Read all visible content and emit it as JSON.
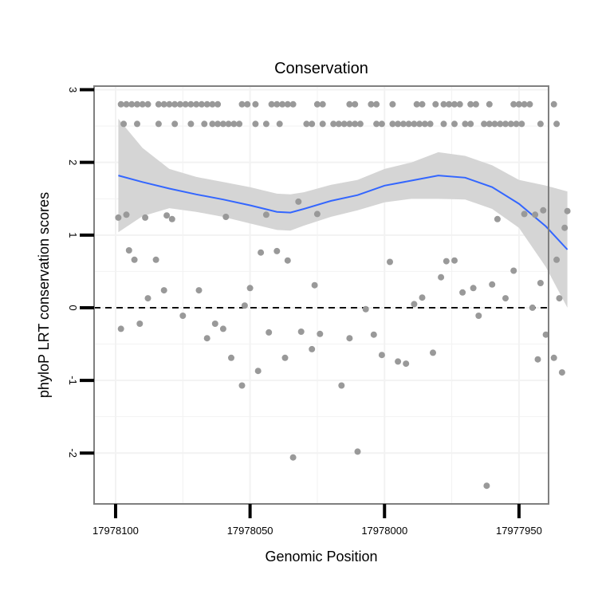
{
  "chart_data": {
    "type": "scatter",
    "title": "Conservation",
    "xlabel": "Genomic Position",
    "ylabel": "phyloP LRT conservation scores",
    "x_reversed": true,
    "xlim": [
      17978108,
      17977939
    ],
    "ylim": [
      -2.7,
      3.05
    ],
    "x_ticks": [
      17978100,
      17978050,
      17978000,
      17977950
    ],
    "x_tick_labels": [
      "17978100",
      "17978050",
      "17978000",
      "17977950"
    ],
    "y_ticks": [
      -2,
      -1,
      0,
      1,
      2,
      3
    ],
    "y_tick_labels": [
      "-2",
      "-1",
      "0",
      "1",
      "2",
      "3"
    ],
    "reference_line": {
      "y": 0,
      "style": "dashed",
      "color": "#000000"
    },
    "grid": true,
    "legend": "none",
    "colors": {
      "points": "#999999",
      "smooth_line": "#3366FF",
      "confidence_band": "#D3D3D3",
      "panel_border": "#7F7F7F",
      "grid": "#F2F2F2"
    },
    "points": [
      {
        "x": 17978099,
        "y": 1.24
      },
      {
        "x": 17978098,
        "y": -0.29
      },
      {
        "x": 17978096,
        "y": 1.28
      },
      {
        "x": 17978095,
        "y": 0.79
      },
      {
        "x": 17978093,
        "y": 0.66
      },
      {
        "x": 17978091,
        "y": -0.22
      },
      {
        "x": 17978089,
        "y": 1.24
      },
      {
        "x": 17978088,
        "y": 0.13
      },
      {
        "x": 17978085,
        "y": 0.66
      },
      {
        "x": 17978082,
        "y": 0.24
      },
      {
        "x": 17978081,
        "y": 1.27
      },
      {
        "x": 17978079,
        "y": 1.22
      },
      {
        "x": 17978075,
        "y": -0.11
      },
      {
        "x": 17978069,
        "y": 0.24
      },
      {
        "x": 17978066,
        "y": -0.42
      },
      {
        "x": 17978063,
        "y": -0.22
      },
      {
        "x": 17978060,
        "y": -0.29
      },
      {
        "x": 17978059,
        "y": 1.25
      },
      {
        "x": 17978057,
        "y": -0.69
      },
      {
        "x": 17978053,
        "y": -1.07
      },
      {
        "x": 17978052,
        "y": 0.03
      },
      {
        "x": 17978050,
        "y": 0.27
      },
      {
        "x": 17978047,
        "y": -0.87
      },
      {
        "x": 17978046,
        "y": 0.76
      },
      {
        "x": 17978044,
        "y": 1.28
      },
      {
        "x": 17978043,
        "y": -0.34
      },
      {
        "x": 17978040,
        "y": 0.78
      },
      {
        "x": 17978037,
        "y": -0.69
      },
      {
        "x": 17978036,
        "y": 0.65
      },
      {
        "x": 17978034,
        "y": -2.06
      },
      {
        "x": 17978032,
        "y": 1.46
      },
      {
        "x": 17978031,
        "y": -0.33
      },
      {
        "x": 17978027,
        "y": -0.57
      },
      {
        "x": 17978026,
        "y": 0.31
      },
      {
        "x": 17978025,
        "y": 1.29
      },
      {
        "x": 17978024,
        "y": -0.36
      },
      {
        "x": 17978016,
        "y": -1.07
      },
      {
        "x": 17978013,
        "y": -0.42
      },
      {
        "x": 17978010,
        "y": -1.98
      },
      {
        "x": 17978007,
        "y": -0.02
      },
      {
        "x": 17978004,
        "y": -0.37
      },
      {
        "x": 17978001,
        "y": -0.65
      },
      {
        "x": 17977998,
        "y": 0.63
      },
      {
        "x": 17977995,
        "y": -0.74
      },
      {
        "x": 17977992,
        "y": -0.77
      },
      {
        "x": 17977989,
        "y": 0.05
      },
      {
        "x": 17977986,
        "y": 0.14
      },
      {
        "x": 17977982,
        "y": -0.62
      },
      {
        "x": 17977979,
        "y": 0.42
      },
      {
        "x": 17977977,
        "y": 0.64
      },
      {
        "x": 17977974,
        "y": 0.65
      },
      {
        "x": 17977971,
        "y": 0.21
      },
      {
        "x": 17977967,
        "y": 0.27
      },
      {
        "x": 17977965,
        "y": -0.11
      },
      {
        "x": 17977962,
        "y": -2.45
      },
      {
        "x": 17977960,
        "y": 0.32
      },
      {
        "x": 17977958,
        "y": 1.22
      },
      {
        "x": 17977955,
        "y": 0.13
      },
      {
        "x": 17977952,
        "y": 0.51
      },
      {
        "x": 17977948,
        "y": 1.29
      },
      {
        "x": 17977945,
        "y": 0.0
      },
      {
        "x": 17977944,
        "y": 1.28
      },
      {
        "x": 17977942,
        "y": 0.34
      },
      {
        "x": 17977943,
        "y": -0.71
      },
      {
        "x": 17977941,
        "y": 1.34
      },
      {
        "x": 17977940,
        "y": -0.37
      },
      {
        "x": 17977937,
        "y": -0.69
      },
      {
        "x": 17977936,
        "y": 0.66
      },
      {
        "x": 17977935,
        "y": 0.13
      },
      {
        "x": 17977934,
        "y": -0.89
      },
      {
        "x": 17977933,
        "y": 1.1
      },
      {
        "x": 17977932,
        "y": 1.33
      },
      {
        "x": 17978098,
        "y": 2.8
      },
      {
        "x": 17978096,
        "y": 2.8
      },
      {
        "x": 17978094,
        "y": 2.8
      },
      {
        "x": 17978092,
        "y": 2.8
      },
      {
        "x": 17978090,
        "y": 2.8
      },
      {
        "x": 17978088,
        "y": 2.8
      },
      {
        "x": 17978084,
        "y": 2.8
      },
      {
        "x": 17978082,
        "y": 2.8
      },
      {
        "x": 17978080,
        "y": 2.8
      },
      {
        "x": 17978078,
        "y": 2.8
      },
      {
        "x": 17978076,
        "y": 2.8
      },
      {
        "x": 17978074,
        "y": 2.8
      },
      {
        "x": 17978072,
        "y": 2.8
      },
      {
        "x": 17978070,
        "y": 2.8
      },
      {
        "x": 17978068,
        "y": 2.8
      },
      {
        "x": 17978066,
        "y": 2.8
      },
      {
        "x": 17978064,
        "y": 2.8
      },
      {
        "x": 17978062,
        "y": 2.8
      },
      {
        "x": 17978053,
        "y": 2.8
      },
      {
        "x": 17978051,
        "y": 2.8
      },
      {
        "x": 17978048,
        "y": 2.8
      },
      {
        "x": 17978042,
        "y": 2.8
      },
      {
        "x": 17978040,
        "y": 2.8
      },
      {
        "x": 17978038,
        "y": 2.8
      },
      {
        "x": 17978036,
        "y": 2.8
      },
      {
        "x": 17978034,
        "y": 2.8
      },
      {
        "x": 17978025,
        "y": 2.8
      },
      {
        "x": 17978023,
        "y": 2.8
      },
      {
        "x": 17978013,
        "y": 2.8
      },
      {
        "x": 17978011,
        "y": 2.8
      },
      {
        "x": 17978005,
        "y": 2.8
      },
      {
        "x": 17978003,
        "y": 2.8
      },
      {
        "x": 17977997,
        "y": 2.8
      },
      {
        "x": 17977988,
        "y": 2.8
      },
      {
        "x": 17977986,
        "y": 2.8
      },
      {
        "x": 17977981,
        "y": 2.8
      },
      {
        "x": 17977978,
        "y": 2.8
      },
      {
        "x": 17977976,
        "y": 2.8
      },
      {
        "x": 17977974,
        "y": 2.8
      },
      {
        "x": 17977972,
        "y": 2.8
      },
      {
        "x": 17977968,
        "y": 2.8
      },
      {
        "x": 17977966,
        "y": 2.8
      },
      {
        "x": 17977961,
        "y": 2.8
      },
      {
        "x": 17977952,
        "y": 2.8
      },
      {
        "x": 17977950,
        "y": 2.8
      },
      {
        "x": 17977948,
        "y": 2.8
      },
      {
        "x": 17977946,
        "y": 2.8
      },
      {
        "x": 17977937,
        "y": 2.8
      },
      {
        "x": 17978097,
        "y": 2.53
      },
      {
        "x": 17978092,
        "y": 2.53
      },
      {
        "x": 17978084,
        "y": 2.53
      },
      {
        "x": 17978078,
        "y": 2.53
      },
      {
        "x": 17978072,
        "y": 2.53
      },
      {
        "x": 17978067,
        "y": 2.53
      },
      {
        "x": 17978064,
        "y": 2.53
      },
      {
        "x": 17978062,
        "y": 2.53
      },
      {
        "x": 17978060,
        "y": 2.53
      },
      {
        "x": 17978058,
        "y": 2.53
      },
      {
        "x": 17978056,
        "y": 2.53
      },
      {
        "x": 17978054,
        "y": 2.53
      },
      {
        "x": 17978048,
        "y": 2.53
      },
      {
        "x": 17978044,
        "y": 2.53
      },
      {
        "x": 17978039,
        "y": 2.53
      },
      {
        "x": 17978029,
        "y": 2.53
      },
      {
        "x": 17978027,
        "y": 2.53
      },
      {
        "x": 17978023,
        "y": 2.53
      },
      {
        "x": 17978019,
        "y": 2.53
      },
      {
        "x": 17978017,
        "y": 2.53
      },
      {
        "x": 17978015,
        "y": 2.53
      },
      {
        "x": 17978013,
        "y": 2.53
      },
      {
        "x": 17978011,
        "y": 2.53
      },
      {
        "x": 17978009,
        "y": 2.53
      },
      {
        "x": 17978003,
        "y": 2.53
      },
      {
        "x": 17978001,
        "y": 2.53
      },
      {
        "x": 17977997,
        "y": 2.53
      },
      {
        "x": 17977995,
        "y": 2.53
      },
      {
        "x": 17977993,
        "y": 2.53
      },
      {
        "x": 17977991,
        "y": 2.53
      },
      {
        "x": 17977989,
        "y": 2.53
      },
      {
        "x": 17977987,
        "y": 2.53
      },
      {
        "x": 17977985,
        "y": 2.53
      },
      {
        "x": 17977983,
        "y": 2.53
      },
      {
        "x": 17977978,
        "y": 2.53
      },
      {
        "x": 17977974,
        "y": 2.53
      },
      {
        "x": 17977970,
        "y": 2.53
      },
      {
        "x": 17977968,
        "y": 2.53
      },
      {
        "x": 17977963,
        "y": 2.53
      },
      {
        "x": 17977961,
        "y": 2.53
      },
      {
        "x": 17977959,
        "y": 2.53
      },
      {
        "x": 17977957,
        "y": 2.53
      },
      {
        "x": 17977955,
        "y": 2.53
      },
      {
        "x": 17977953,
        "y": 2.53
      },
      {
        "x": 17977951,
        "y": 2.53
      },
      {
        "x": 17977949,
        "y": 2.53
      },
      {
        "x": 17977942,
        "y": 2.53
      },
      {
        "x": 17977936,
        "y": 2.53
      }
    ],
    "smooth": {
      "x": [
        17978099,
        17978090,
        17978080,
        17978070,
        17978060,
        17978050,
        17978040,
        17978035,
        17978030,
        17978020,
        17978010,
        17978000,
        17977990,
        17977980,
        17977970,
        17977960,
        17977950,
        17977940,
        17977932
      ],
      "y": [
        1.82,
        1.73,
        1.64,
        1.56,
        1.49,
        1.41,
        1.32,
        1.31,
        1.36,
        1.47,
        1.55,
        1.68,
        1.75,
        1.82,
        1.79,
        1.66,
        1.43,
        1.12,
        0.8
      ],
      "lower": [
        1.04,
        1.26,
        1.37,
        1.32,
        1.25,
        1.16,
        1.07,
        1.06,
        1.13,
        1.25,
        1.34,
        1.45,
        1.5,
        1.5,
        1.49,
        1.36,
        1.1,
        0.56,
        0.0
      ],
      "upper": [
        2.6,
        2.2,
        1.91,
        1.8,
        1.73,
        1.66,
        1.57,
        1.56,
        1.59,
        1.69,
        1.76,
        1.91,
        2.0,
        2.14,
        2.09,
        1.96,
        1.76,
        1.68,
        1.6
      ]
    }
  }
}
